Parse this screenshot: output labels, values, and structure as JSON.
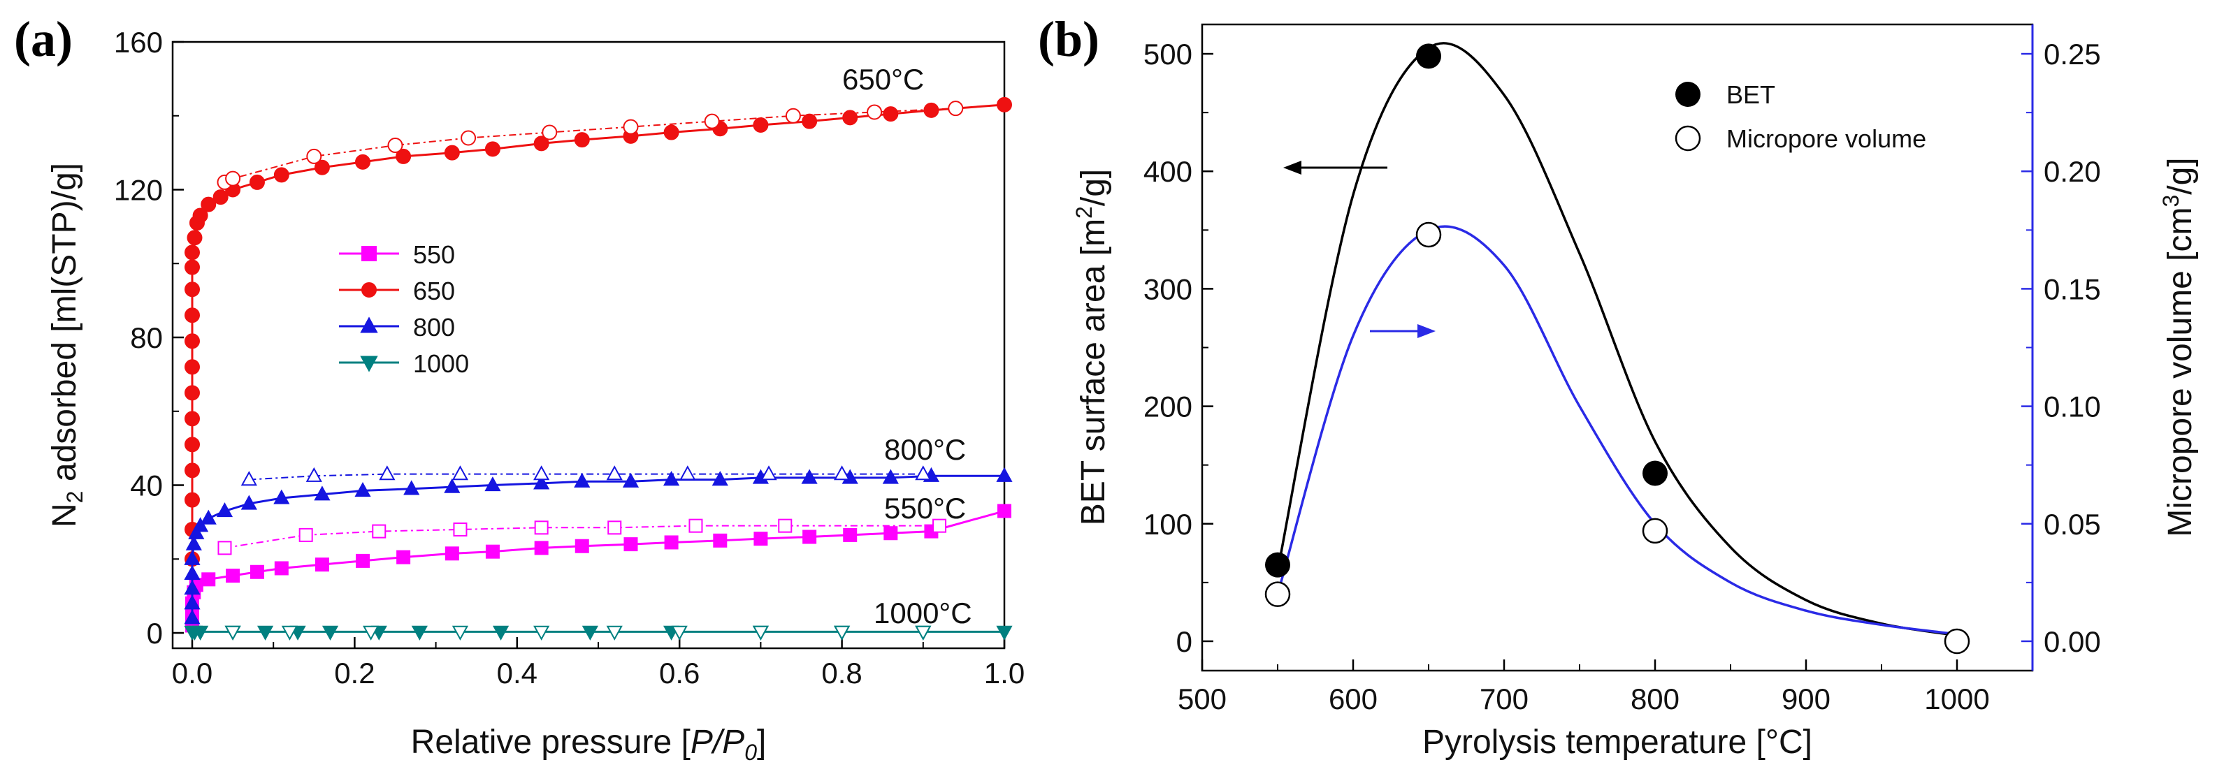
{
  "chart_data": [
    {
      "id": "a",
      "type": "scatter",
      "panel_label": "(a)",
      "xlabel_main": "Relative pressure [",
      "xlabel_italic": "P/P",
      "xlabel_sub": "0",
      "xlabel_end": "]",
      "ylabel_pre": "N",
      "ylabel_sub": "2",
      "ylabel_post": " adsorbed [ml(STP)/g]",
      "xlim": [
        0.0,
        1.0
      ],
      "ylim": [
        0,
        160
      ],
      "xticks": [
        "0.0",
        "0.2",
        "0.4",
        "0.6",
        "0.8",
        "1.0"
      ],
      "yticks": [
        "0",
        "40",
        "80",
        "120",
        "160"
      ],
      "legend": [
        {
          "label": "550",
          "color": "#ff00ff",
          "marker": "square"
        },
        {
          "label": "650",
          "color": "#ee1111",
          "marker": "circle"
        },
        {
          "label": "800",
          "color": "#1515e0",
          "marker": "triangle-up"
        },
        {
          "label": "1000",
          "color": "#008080",
          "marker": "triangle-down"
        }
      ],
      "annotations": [
        "650°C",
        "800°C",
        "550°C",
        "1000°C"
      ],
      "series": [
        {
          "name": "550",
          "branch": "adsorption",
          "color": "#ff00ff",
          "marker": "square",
          "x": [
            0.0,
            0.0,
            0.0,
            0.002,
            0.005,
            0.02,
            0.05,
            0.08,
            0.11,
            0.16,
            0.21,
            0.26,
            0.32,
            0.37,
            0.43,
            0.48,
            0.54,
            0.59,
            0.65,
            0.7,
            0.76,
            0.81,
            0.86,
            0.91,
            1.0
          ],
          "y": [
            2,
            5,
            8,
            11,
            13,
            14.5,
            15.5,
            16.5,
            17.5,
            18.5,
            19.5,
            20.5,
            21.5,
            22,
            23,
            23.5,
            24,
            24.5,
            25,
            25.5,
            26,
            26.5,
            27,
            27.5,
            33
          ]
        },
        {
          "name": "550",
          "branch": "desorption",
          "color": "#ff00ff",
          "marker": "square-open",
          "x": [
            0.04,
            0.14,
            0.23,
            0.33,
            0.43,
            0.52,
            0.62,
            0.73,
            0.92
          ],
          "y": [
            23,
            26.5,
            27.5,
            28,
            28.5,
            28.5,
            29,
            29,
            29
          ]
        },
        {
          "name": "650",
          "branch": "adsorption",
          "color": "#ee1111",
          "marker": "circle",
          "x": [
            0.0,
            0.0,
            0.0,
            0.0,
            0.0,
            0.0,
            0.0,
            0.0,
            0.0,
            0.0,
            0.0,
            0.0,
            0.0,
            0.003,
            0.006,
            0.01,
            0.02,
            0.035,
            0.05,
            0.08,
            0.11,
            0.16,
            0.21,
            0.26,
            0.32,
            0.37,
            0.43,
            0.48,
            0.54,
            0.59,
            0.65,
            0.7,
            0.76,
            0.81,
            0.86,
            0.91,
            1.0
          ],
          "y": [
            20,
            28,
            36,
            44,
            51,
            58,
            65,
            72,
            79,
            86,
            93,
            99,
            103,
            107,
            111,
            113,
            116,
            118,
            120,
            122,
            124,
            126,
            127.5,
            129,
            130,
            131,
            132.5,
            133.5,
            134.5,
            135.5,
            136.5,
            137.5,
            138.5,
            139.5,
            140.5,
            141.5,
            143
          ]
        },
        {
          "name": "650",
          "branch": "desorption",
          "color": "#ee1111",
          "marker": "circle-open",
          "x": [
            0.04,
            0.05,
            0.15,
            0.25,
            0.34,
            0.44,
            0.54,
            0.64,
            0.74,
            0.84,
            0.94
          ],
          "y": [
            122,
            123,
            129,
            132,
            134,
            135.5,
            137,
            138.5,
            140,
            141,
            142
          ]
        },
        {
          "name": "800",
          "branch": "adsorption",
          "color": "#1515e0",
          "marker": "triangle",
          "x": [
            0.0,
            0.0,
            0.0,
            0.0,
            0.0,
            0.002,
            0.005,
            0.01,
            0.02,
            0.04,
            0.07,
            0.11,
            0.16,
            0.21,
            0.27,
            0.32,
            0.37,
            0.43,
            0.48,
            0.54,
            0.59,
            0.65,
            0.7,
            0.76,
            0.81,
            0.86,
            0.91,
            1.0
          ],
          "y": [
            4,
            8,
            12,
            16,
            20,
            24,
            27,
            29,
            31,
            33,
            35,
            36.5,
            37.5,
            38.5,
            39,
            39.5,
            40,
            40.5,
            41,
            41,
            41.5,
            41.5,
            42,
            42,
            42,
            42,
            42.5,
            42.5
          ]
        },
        {
          "name": "800",
          "branch": "desorption",
          "color": "#1515e0",
          "marker": "triangle-open",
          "x": [
            0.07,
            0.15,
            0.24,
            0.33,
            0.43,
            0.52,
            0.61,
            0.71,
            0.8,
            0.9
          ],
          "y": [
            41.5,
            42.5,
            43,
            43,
            43,
            43,
            43,
            43,
            43,
            43
          ]
        },
        {
          "name": "1000",
          "branch": "adsorption",
          "color": "#008080",
          "marker": "triangle-down",
          "x": [
            0.0,
            0.003,
            0.01,
            0.05,
            0.09,
            0.13,
            0.17,
            0.23,
            0.28,
            0.38,
            0.49,
            0.59,
            0.7,
            0.8,
            0.9,
            1.0
          ],
          "y": [
            0.3,
            0.3,
            0.3,
            0.3,
            0.3,
            0.3,
            0.3,
            0.3,
            0.3,
            0.3,
            0.3,
            0.3,
            0.3,
            0.3,
            0.3,
            0.3
          ]
        },
        {
          "name": "1000",
          "branch": "desorption",
          "color": "#008080",
          "marker": "triangle-down-open",
          "x": [
            0.05,
            0.12,
            0.22,
            0.33,
            0.43,
            0.52,
            0.6,
            0.7,
            0.8,
            0.9
          ],
          "y": [
            0.3,
            0.3,
            0.3,
            0.3,
            0.3,
            0.3,
            0.3,
            0.3,
            0.3,
            0.3
          ]
        }
      ]
    },
    {
      "id": "b",
      "type": "scatter",
      "panel_label": "(b)",
      "xlabel": "Pyrolysis temperature [°C]",
      "ylabel_left_pre": "BET surface area [m",
      "ylabel_left_sup": "2",
      "ylabel_left_post": "/g]",
      "ylabel_right_pre": "Micropore volume [cm",
      "ylabel_right_sup": "3",
      "ylabel_right_post": "/g]",
      "xlim": [
        500,
        1050
      ],
      "ylim_left": [
        -25,
        525
      ],
      "ylim_right": [
        -0.0125,
        0.2625
      ],
      "xticks": [
        "500",
        "600",
        "700",
        "800",
        "900",
        "1000"
      ],
      "yticks_left": [
        "0",
        "100",
        "200",
        "300",
        "400",
        "500"
      ],
      "yticks_right": [
        "0.00",
        "0.05",
        "0.10",
        "0.15",
        "0.20",
        "0.25"
      ],
      "right_axis_color": "#2a2ae6",
      "legend": [
        {
          "label": "BET",
          "marker": "circle-filled"
        },
        {
          "label": "Micropore volume",
          "marker": "circle-open"
        }
      ],
      "series": [
        {
          "name": "BET",
          "axis": "left",
          "color": "#000000",
          "marker": "circle-filled",
          "x": [
            550,
            650,
            800,
            1000
          ],
          "y": [
            65,
            498,
            143,
            0
          ]
        },
        {
          "name": "Micropore volume",
          "axis": "right",
          "color": "#000000",
          "marker": "circle-open",
          "x": [
            550,
            650,
            800,
            1000
          ],
          "y": [
            0.02,
            0.173,
            0.047,
            0.0
          ]
        }
      ],
      "fit_curves": [
        {
          "name": "BET fit",
          "axis": "left",
          "color": "#000000",
          "x": [
            550,
            600,
            650,
            700,
            750,
            800,
            850,
            900,
            950,
            1000
          ],
          "y": [
            60,
            380,
            505,
            465,
            330,
            170,
            80,
            35,
            15,
            5
          ]
        },
        {
          "name": "Micropore fit",
          "axis": "right",
          "color": "#2a2ae6",
          "x": [
            550,
            600,
            650,
            700,
            750,
            800,
            850,
            900,
            950,
            1000
          ],
          "y": [
            0.02,
            0.13,
            0.175,
            0.16,
            0.1,
            0.05,
            0.025,
            0.013,
            0.007,
            0.003
          ]
        }
      ]
    }
  ]
}
